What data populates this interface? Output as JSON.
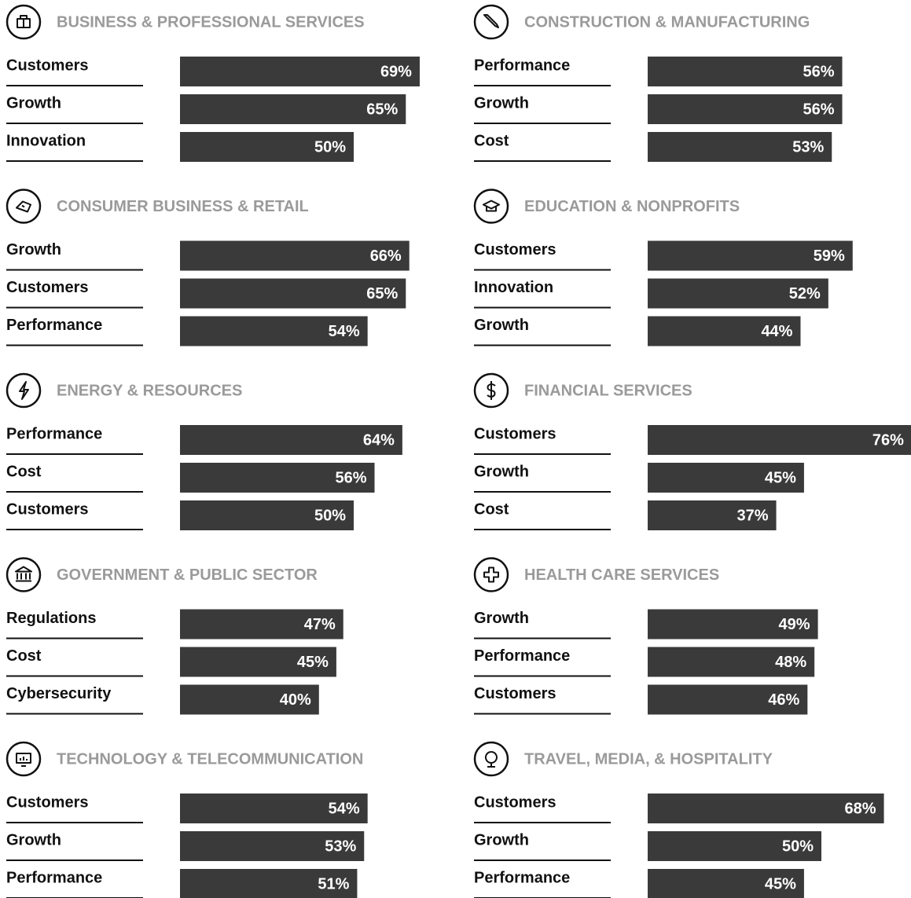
{
  "chart_data": [
    {
      "type": "bar",
      "orientation": "horizontal",
      "color": "#3a3a3a",
      "title": "BUSINESS & PROFESSIONAL SERVICES",
      "categories": [
        "Customers",
        "Growth",
        "Innovation"
      ],
      "values": [
        69,
        65,
        50
      ],
      "value_labels": [
        "69%",
        "65%",
        "50%"
      ]
    },
    {
      "type": "bar",
      "orientation": "horizontal",
      "color": "#3a3a3a",
      "title": "CONSTRUCTION & MANUFACTURING",
      "categories": [
        "Performance",
        "Growth",
        "Cost"
      ],
      "values": [
        56,
        56,
        53
      ],
      "value_labels": [
        "56%",
        "56%",
        "53%"
      ]
    },
    {
      "type": "bar",
      "orientation": "horizontal",
      "color": "#3a3a3a",
      "title": "CONSUMER BUSINESS & RETAIL",
      "categories": [
        "Growth",
        "Customers",
        "Performance"
      ],
      "values": [
        66,
        65,
        54
      ],
      "value_labels": [
        "66%",
        "65%",
        "54%"
      ]
    },
    {
      "type": "bar",
      "orientation": "horizontal",
      "color": "#3a3a3a",
      "title": "EDUCATION & NONPROFITS",
      "categories": [
        "Customers",
        "Innovation",
        "Growth"
      ],
      "values": [
        59,
        52,
        44
      ],
      "value_labels": [
        "59%",
        "52%",
        "44%"
      ]
    },
    {
      "type": "bar",
      "orientation": "horizontal",
      "color": "#3a3a3a",
      "title": "ENERGY & RESOURCES",
      "categories": [
        "Performance",
        "Cost",
        "Customers"
      ],
      "values": [
        64,
        56,
        50
      ],
      "value_labels": [
        "64%",
        "56%",
        "50%"
      ]
    },
    {
      "type": "bar",
      "orientation": "horizontal",
      "color": "#3a3a3a",
      "title": "FINANCIAL SERVICES",
      "categories": [
        "Customers",
        "Growth",
        "Cost"
      ],
      "values": [
        76,
        45,
        37
      ],
      "value_labels": [
        "76%",
        "45%",
        "37%"
      ]
    },
    {
      "type": "bar",
      "orientation": "horizontal",
      "color": "#3a3a3a",
      "title": "GOVERNMENT & PUBLIC SECTOR",
      "categories": [
        "Regulations",
        "Cost",
        "Cybersecurity"
      ],
      "values": [
        47,
        45,
        40
      ],
      "value_labels": [
        "47%",
        "45%",
        "40%"
      ]
    },
    {
      "type": "bar",
      "orientation": "horizontal",
      "color": "#3a3a3a",
      "title": "HEALTH CARE SERVICES",
      "categories": [
        "Growth",
        "Performance",
        "Customers"
      ],
      "values": [
        49,
        48,
        46
      ],
      "value_labels": [
        "49%",
        "48%",
        "46%"
      ]
    },
    {
      "type": "bar",
      "orientation": "horizontal",
      "color": "#3a3a3a",
      "title": "TECHNOLOGY & TELECOMMUNICATION",
      "categories": [
        "Customers",
        "Growth",
        "Performance"
      ],
      "values": [
        54,
        53,
        51
      ],
      "value_labels": [
        "54%",
        "53%",
        "51%"
      ]
    },
    {
      "type": "bar",
      "orientation": "horizontal",
      "color": "#3a3a3a",
      "title": "TRAVEL, MEDIA, & HOSPITALITY",
      "categories": [
        "Customers",
        "Growth",
        "Performance"
      ],
      "values": [
        68,
        50,
        45
      ],
      "value_labels": [
        "68%",
        "50%",
        "45%"
      ]
    }
  ]
}
